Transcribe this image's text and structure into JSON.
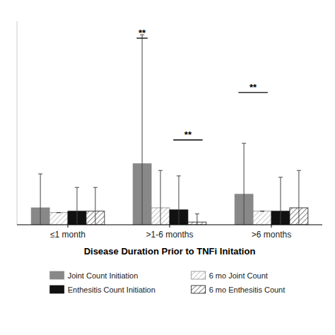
{
  "chart_data": {
    "type": "bar",
    "xlabel": "Disease Duration Prior to TNFi Initation",
    "categories": [
      "≤1 month",
      ">1-6 months",
      ">6 months"
    ],
    "series": [
      {
        "name": "Joint Count Initiation",
        "color": "#888888",
        "values": [
          2.5,
          9.0,
          4.5
        ],
        "errors": [
          5.0,
          19.0,
          7.5
        ]
      },
      {
        "name": "6 mo Joint Count",
        "color": "#ffffff",
        "values": [
          1.8,
          2.5,
          2.0
        ],
        "errors": [
          0.0,
          5.5,
          0.0
        ]
      },
      {
        "name": "Enthesitis Count Initiation",
        "color": "#111111",
        "values": [
          2.0,
          2.2,
          2.0
        ],
        "errors": [
          3.5,
          5.0,
          5.0
        ]
      },
      {
        "name": "6 mo Enthesitis Count",
        "color": "#ffffff",
        "values": [
          2.0,
          0.4,
          2.5
        ],
        "errors": [
          3.5,
          1.2,
          5.5
        ]
      }
    ],
    "ylim": [
      0,
      30
    ],
    "tick_labels": "x",
    "grid": false,
    "legend": "bottom",
    "annotations": [
      {
        "text": "**",
        "y": 27.5,
        "category": ">1-6 months",
        "series": [
          "Joint Count Initiation"
        ]
      },
      {
        "text": "**",
        "y": 12.5,
        "category": ">1-6 months",
        "series": [
          "Enthesitis Count Initiation",
          "6 mo Enthesitis Count"
        ]
      },
      {
        "text": "**",
        "y": 19.5,
        "category": ">6 months",
        "series": [
          "Joint Count Initiation",
          "6 mo Joint Count"
        ]
      }
    ]
  }
}
